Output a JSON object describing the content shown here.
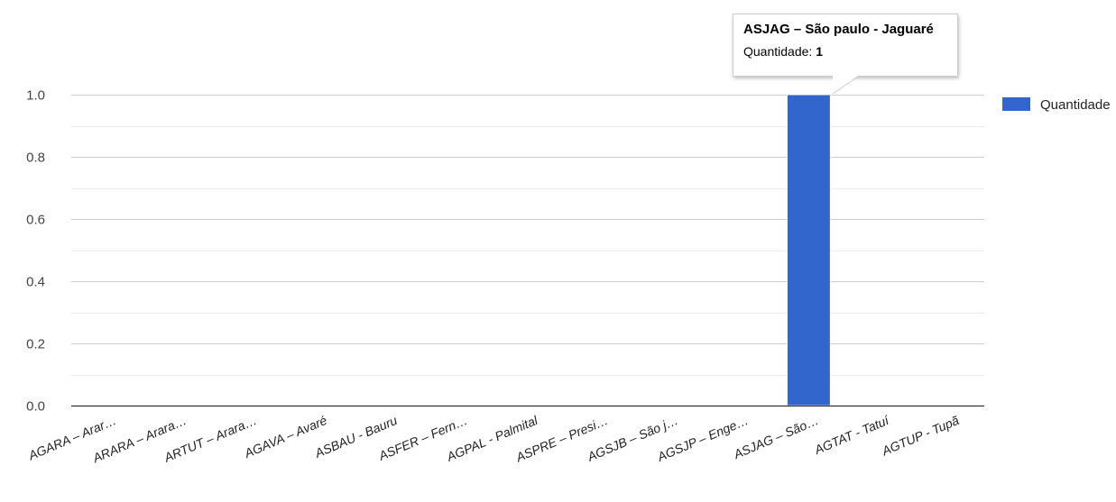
{
  "chart_data": {
    "type": "bar",
    "categories": [
      "AGARA – Arar…",
      "ARARA – Arara…",
      "ARTUT – Arara…",
      "AGAVA – Avaré",
      "ASBAU - Bauru",
      "ASFER – Fern…",
      "AGPAL - Palmital",
      "ASPRE – Presi…",
      "AGSJB – São j…",
      "AGSJP – Enge…",
      "ASJAG – São…",
      "AGTAT - Tatuí",
      "AGTUP - Tupã"
    ],
    "series": [
      {
        "name": "Quantidade",
        "values": [
          0,
          0,
          0,
          0,
          0,
          0,
          0,
          0,
          0,
          0,
          1,
          0,
          0
        ]
      }
    ],
    "ylim": [
      0,
      1
    ],
    "yticks": [
      "0.0",
      "0.2",
      "0.4",
      "0.6",
      "0.8",
      "1.0"
    ],
    "grid": true,
    "legend": "right",
    "bar_color": "#3366cc"
  },
  "tooltip": {
    "title": "ASJAG – São paulo - Jaguaré",
    "label": "Quantidade:",
    "value": "1"
  }
}
